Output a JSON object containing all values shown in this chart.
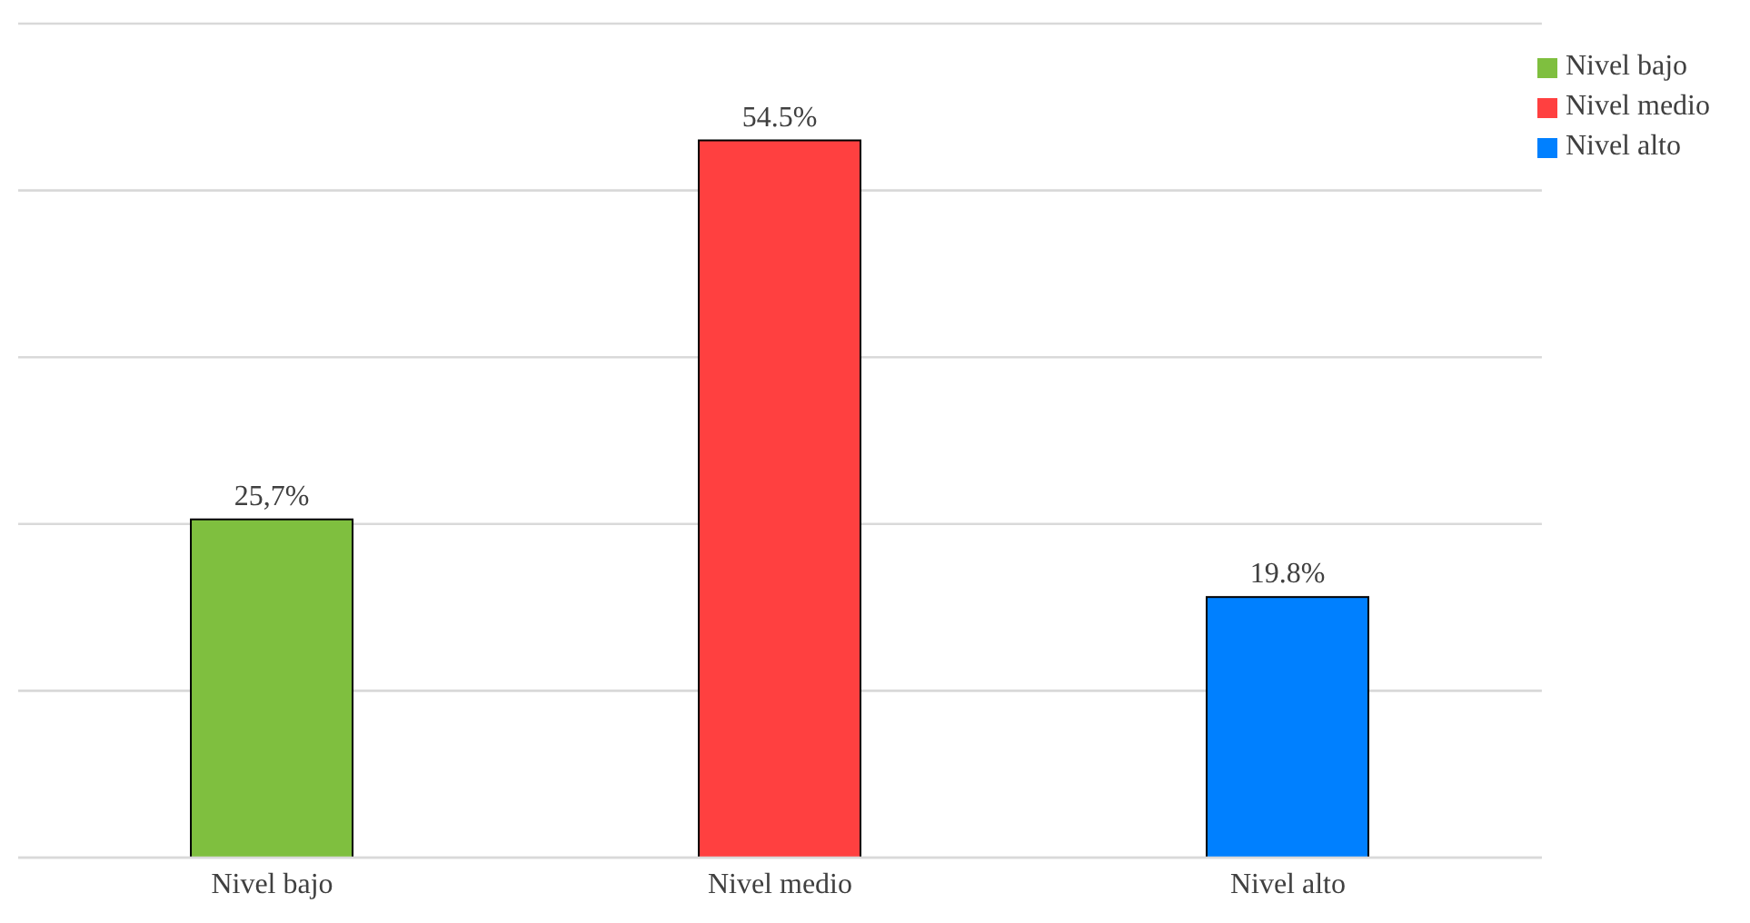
{
  "chart_data": {
    "type": "bar",
    "categories": [
      "Nivel bajo",
      "Nivel medio",
      "Nivel alto"
    ],
    "stacked": true,
    "series": [
      {
        "name": "Nivel bajo",
        "color": "#7fbf3f",
        "values": [
          25.7,
          null,
          null
        ],
        "value_labels": [
          "25,7%",
          null,
          null
        ]
      },
      {
        "name": "Nivel medio",
        "color": "#ff4040",
        "values": [
          null,
          54.5,
          null
        ],
        "value_labels": [
          null,
          "54.5%",
          null
        ]
      },
      {
        "name": "Nivel alto",
        "color": "#0080ff",
        "values": [
          null,
          null,
          19.8
        ],
        "value_labels": [
          null,
          null,
          "19.8%"
        ]
      }
    ],
    "tick_labels": "x",
    "grid": "y",
    "legend": "top right"
  }
}
